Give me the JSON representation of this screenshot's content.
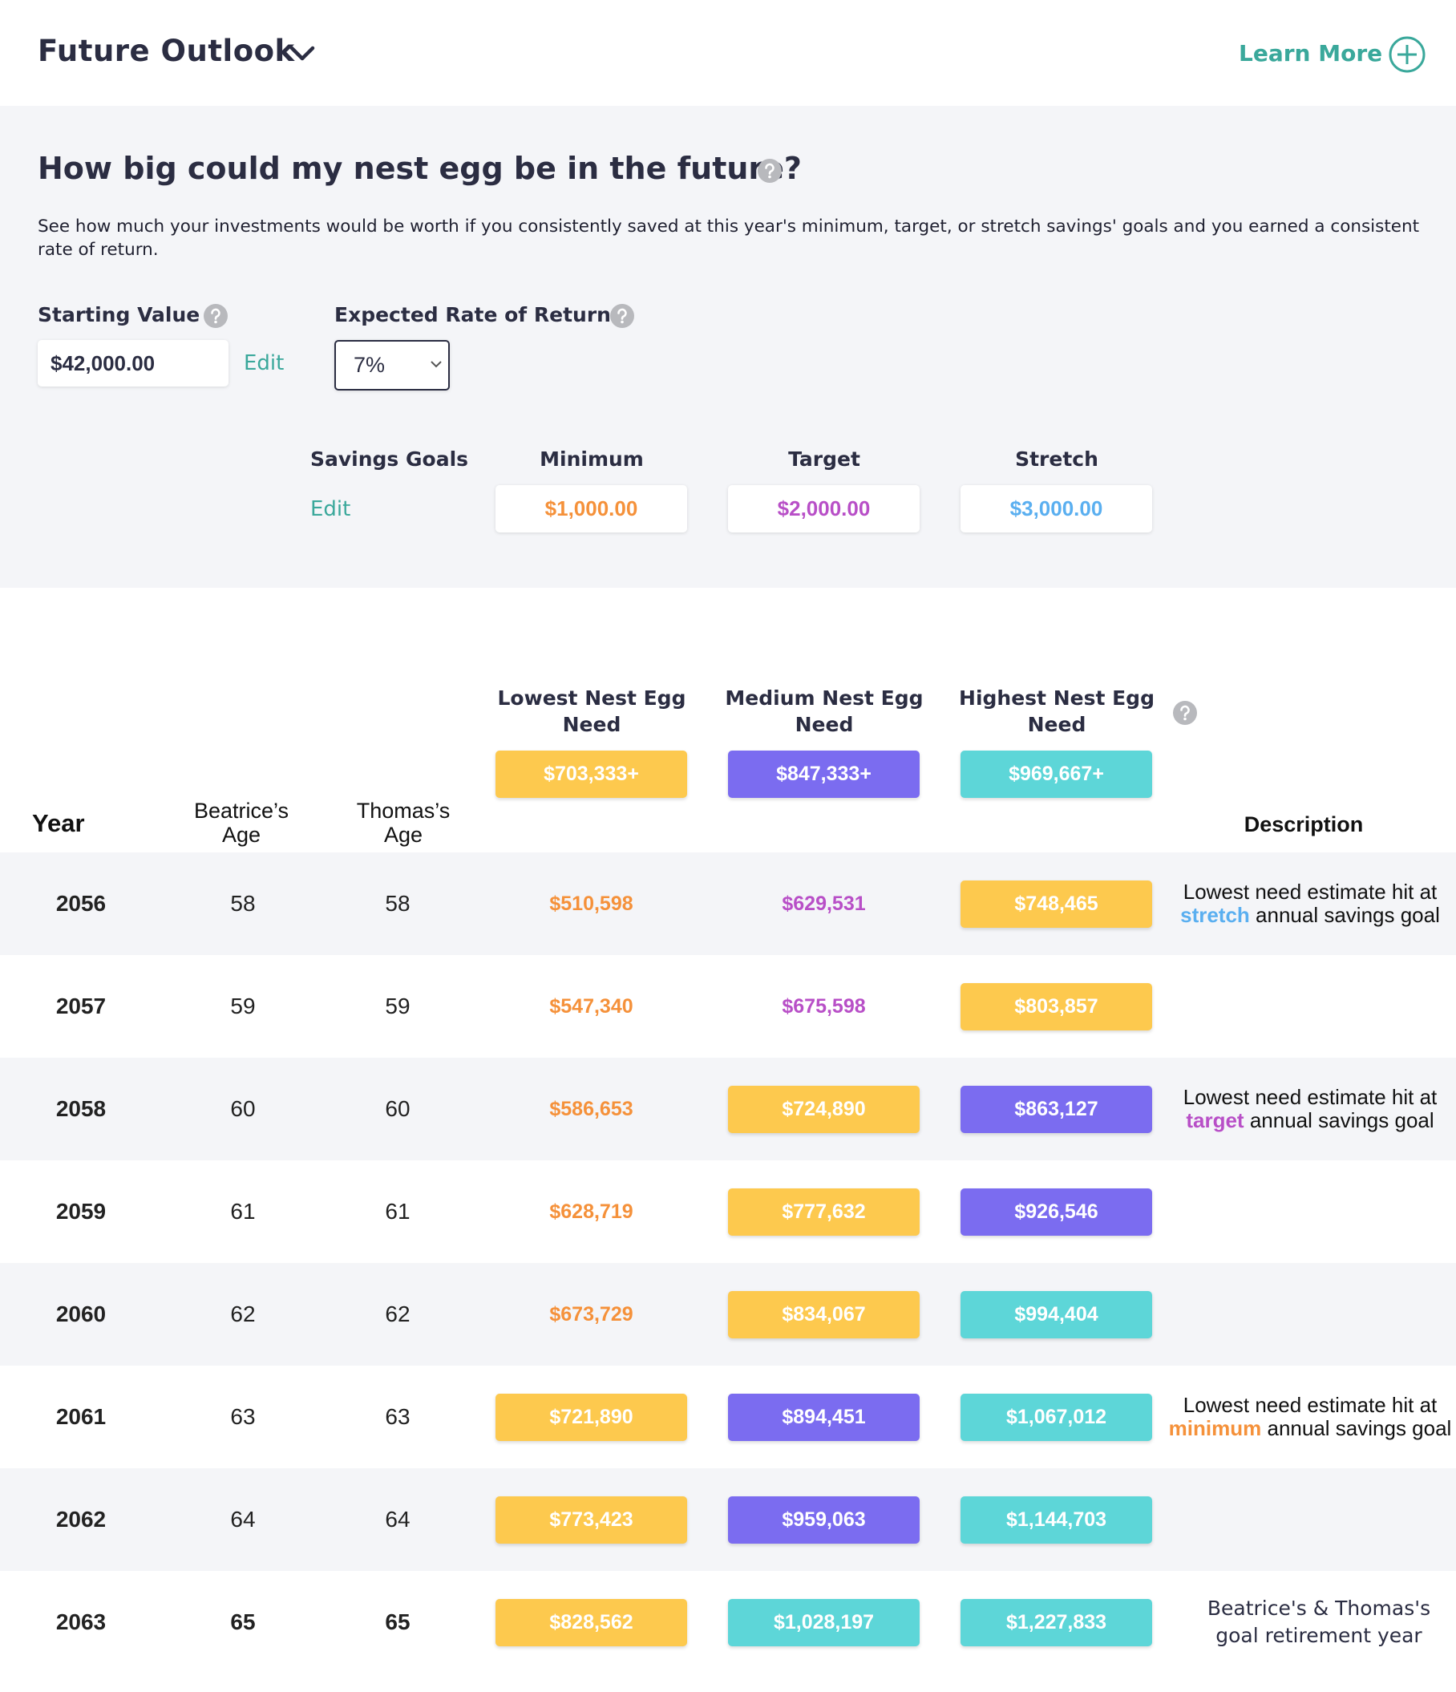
{
  "header": {
    "title": "Future Outlook",
    "link": "Learn More"
  },
  "panel": {
    "heading": "How big could my nest egg be in the future?",
    "description": "See how much your investments would be worth if you consistently saved at this year's minimum, target, or stretch savings' goals and you earned a consistent rate of return.",
    "starting_value": {
      "label": "Starting Value",
      "value": "$42,000.00",
      "action": "Edit"
    },
    "rate": {
      "label": "Expected Rate of Return",
      "value": "7%"
    },
    "savings_goals": {
      "label": "Savings Goals",
      "action": "Edit",
      "goals": [
        {
          "name": "Minimum",
          "value": "$1,000.00",
          "color": "#f5913a"
        },
        {
          "name": "Target",
          "value": "$2,000.00",
          "color": "#b84fc7"
        },
        {
          "name": "Stretch",
          "value": "$3,000.00",
          "color": "#5aaff0"
        }
      ]
    }
  },
  "table": {
    "columns": {
      "year": "Year",
      "age1": "Beatrice’s Age",
      "age2": "Thomas’s Age",
      "description": "Description"
    },
    "needs": [
      {
        "label": "Lowest Nest Egg Need",
        "value": "$703,333+",
        "fill": "#fdc94e"
      },
      {
        "label": "Medium Nest Egg Need",
        "value": "$847,333+",
        "fill": "#7b6cf0"
      },
      {
        "label": "Highest Nest Egg Need",
        "value": "$969,667+",
        "fill": "#5dd6d8"
      }
    ],
    "rows": [
      {
        "year": "2056",
        "age1": "58",
        "age2": "58",
        "cells": [
          {
            "text": "$510,598",
            "color": "#f5913a"
          },
          {
            "text": "$629,531",
            "color": "#b84fc7"
          },
          {
            "text": "$748,465",
            "fill": "#fdc94e"
          }
        ],
        "description": {
          "before": "Lowest need estimate hit at",
          "highlight": "stretch",
          "color": "#5aaff0",
          "after": "annual savings goal"
        }
      },
      {
        "year": "2057",
        "age1": "59",
        "age2": "59",
        "cells": [
          {
            "text": "$547,340",
            "color": "#f5913a"
          },
          {
            "text": "$675,598",
            "color": "#b84fc7"
          },
          {
            "text": "$803,857",
            "fill": "#fdc94e"
          }
        ]
      },
      {
        "year": "2058",
        "age1": "60",
        "age2": "60",
        "cells": [
          {
            "text": "$586,653",
            "color": "#f5913a"
          },
          {
            "text": "$724,890",
            "fill": "#fdc94e"
          },
          {
            "text": "$863,127",
            "fill": "#7b6cf0"
          }
        ],
        "description": {
          "before": "Lowest need estimate hit at",
          "highlight": "target",
          "color": "#b84fc7",
          "after": "annual savings goal"
        }
      },
      {
        "year": "2059",
        "age1": "61",
        "age2": "61",
        "cells": [
          {
            "text": "$628,719",
            "color": "#f5913a"
          },
          {
            "text": "$777,632",
            "fill": "#fdc94e"
          },
          {
            "text": "$926,546",
            "fill": "#7b6cf0"
          }
        ]
      },
      {
        "year": "2060",
        "age1": "62",
        "age2": "62",
        "cells": [
          {
            "text": "$673,729",
            "color": "#f5913a"
          },
          {
            "text": "$834,067",
            "fill": "#fdc94e"
          },
          {
            "text": "$994,404",
            "fill": "#5dd6d8"
          }
        ]
      },
      {
        "year": "2061",
        "age1": "63",
        "age2": "63",
        "cells": [
          {
            "text": "$721,890",
            "fill": "#fdc94e"
          },
          {
            "text": "$894,451",
            "fill": "#7b6cf0"
          },
          {
            "text": "$1,067,012",
            "fill": "#5dd6d8"
          }
        ],
        "description": {
          "before": "Lowest need estimate hit at",
          "highlight": "minimum",
          "color": "#f5913a",
          "after": "annual savings goal"
        }
      },
      {
        "year": "2062",
        "age1": "64",
        "age2": "64",
        "cells": [
          {
            "text": "$773,423",
            "fill": "#fdc94e"
          },
          {
            "text": "$959,063",
            "fill": "#7b6cf0"
          },
          {
            "text": "$1,144,703",
            "fill": "#5dd6d8"
          }
        ]
      },
      {
        "year": "2063",
        "age1": "65",
        "age2": "65",
        "cells": [
          {
            "text": "$828,562",
            "fill": "#fdc94e"
          },
          {
            "text": "$1,028,197",
            "fill": "#5dd6d8"
          },
          {
            "text": "$1,227,833",
            "fill": "#5dd6d8"
          }
        ],
        "description": {
          "text": "Beatrice's & Thomas's goal retirement year"
        }
      }
    ]
  }
}
